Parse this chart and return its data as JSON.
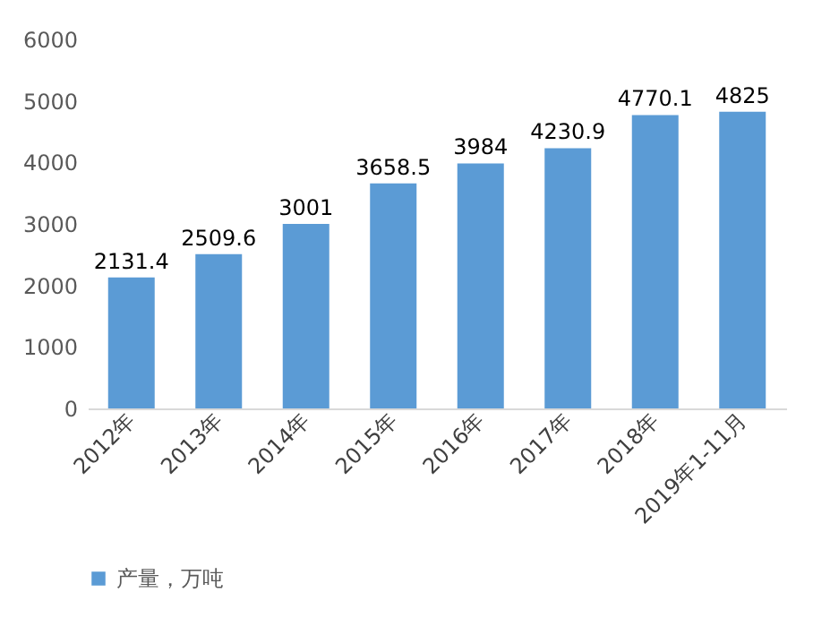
{
  "chart_data": {
    "type": "bar",
    "categories": [
      "2012年",
      "2013年",
      "2014年",
      "2015年",
      "2016年",
      "2017年",
      "2018年",
      "2019年1-11月"
    ],
    "series": [
      {
        "name": "产量，万吨",
        "color": "#5b9bd5",
        "values": [
          2131.4,
          2509.6,
          3001,
          3658.5,
          3984,
          4230.9,
          4770.1,
          4825
        ]
      }
    ],
    "ylim": [
      0,
      6000
    ],
    "yticks": [
      0,
      1000,
      2000,
      3000,
      4000,
      5000,
      6000
    ],
    "data_labels": true,
    "grid": false,
    "legend": "bottom"
  }
}
